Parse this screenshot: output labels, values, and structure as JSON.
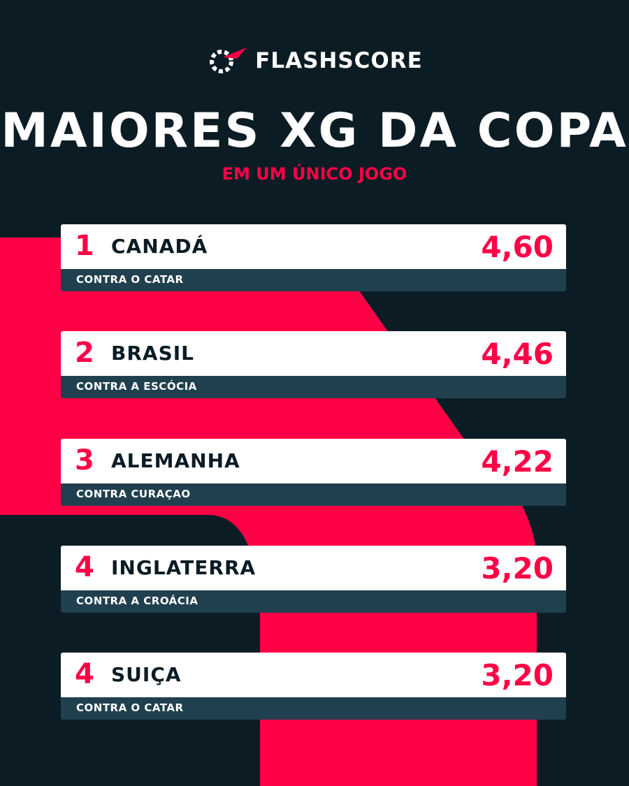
{
  "header": {
    "brand": "FLASHSCORE",
    "title": "MAIORES XG DA COPA",
    "subtitle": "EM UM ÚNICO JOGO"
  },
  "rows": [
    {
      "rank": "1",
      "team": "CANADÁ",
      "value": "4,60",
      "opponent": "CONTRA O CATAR"
    },
    {
      "rank": "2",
      "team": "BRASIL",
      "value": "4,46",
      "opponent": "CONTRA A ESCÓCIA"
    },
    {
      "rank": "3",
      "team": "ALEMANHA",
      "value": "4,22",
      "opponent": "CONTRA CURAÇAO"
    },
    {
      "rank": "4",
      "team": "INGLATERRA",
      "value": "3,20",
      "opponent": "CONTRA A CROÁCIA"
    },
    {
      "rank": "4",
      "team": "SUIÇA",
      "value": "3,20",
      "opponent": "CONTRA O CATAR"
    }
  ]
}
